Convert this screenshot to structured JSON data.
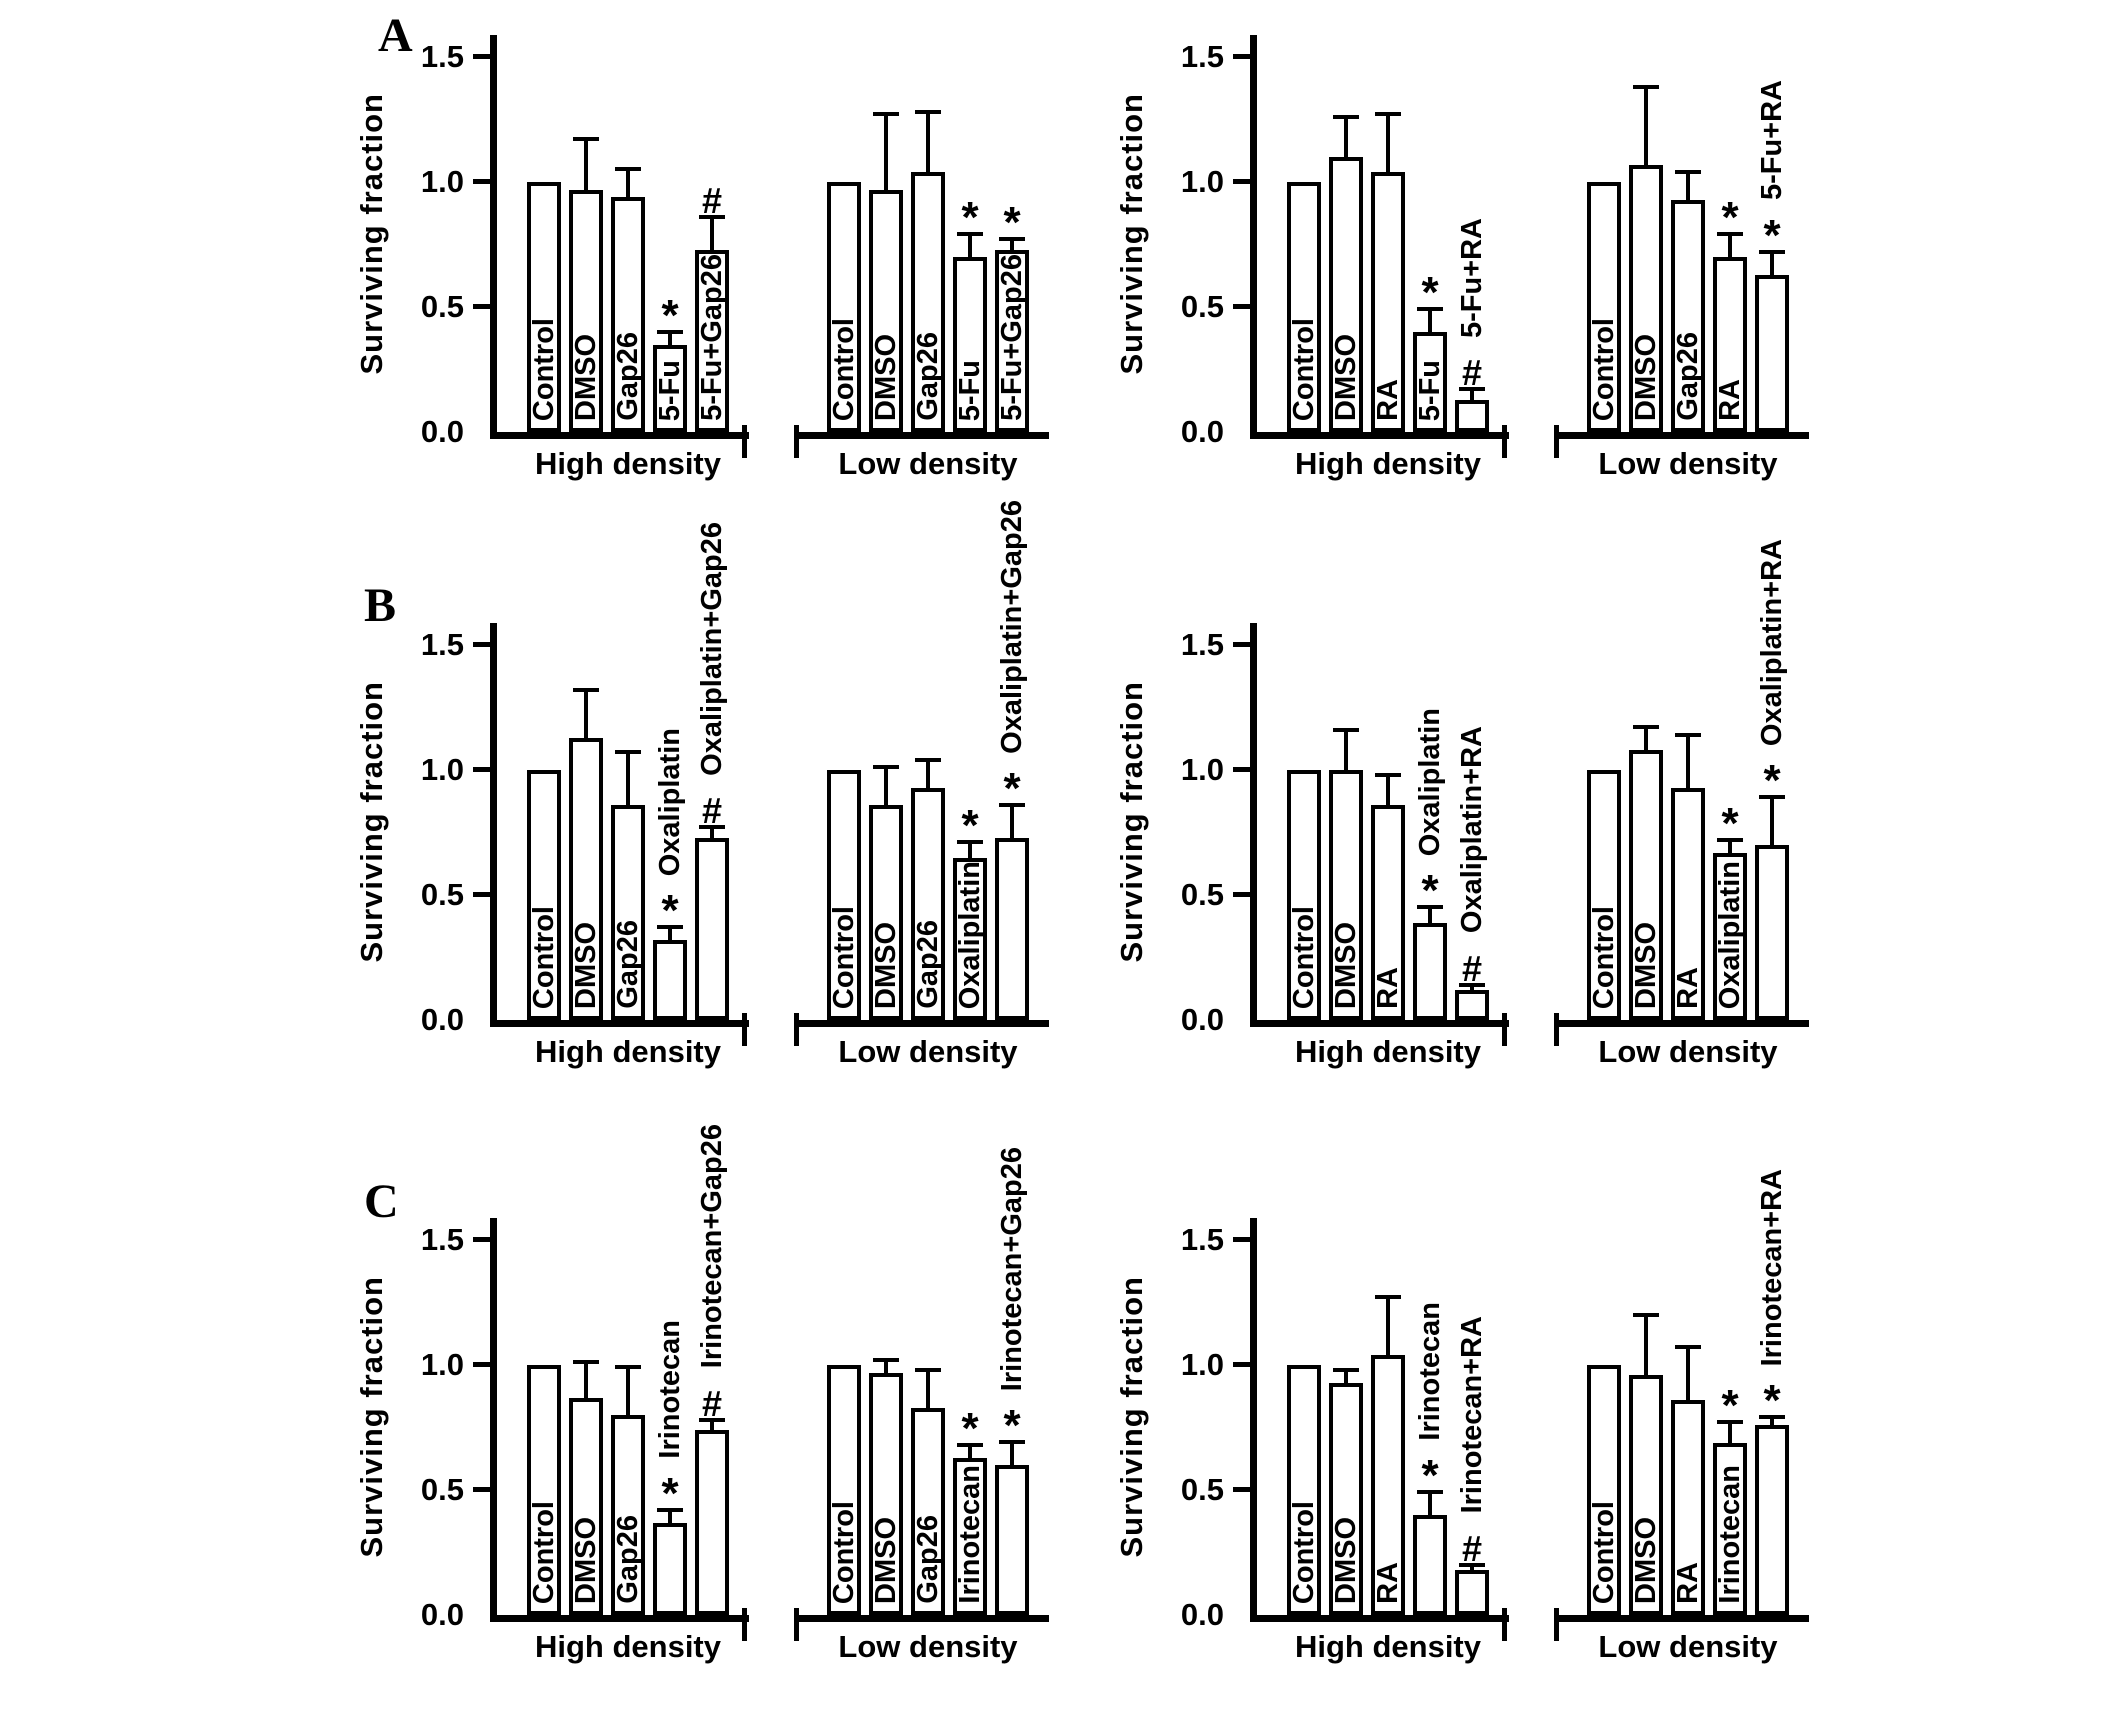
{
  "figure": {
    "panel_letters": [
      "A",
      "B",
      "C"
    ],
    "background": "#ffffff",
    "ink_color": "#000000"
  },
  "chart_data": [
    {
      "type": "bar",
      "panel": "A",
      "position": "left",
      "title": "",
      "xlabel": "",
      "ylabel": "Surviving fraction",
      "ylim": [
        0,
        1.5
      ],
      "yticks": [
        "0.0",
        "0.5",
        "1.0",
        "1.5"
      ],
      "grid": false,
      "legend": "none",
      "groups": [
        {
          "label": "High density",
          "bars": [
            {
              "label": "Control",
              "value": 1.0,
              "err": 0,
              "marker": "",
              "label_pos": "in"
            },
            {
              "label": "DMSO",
              "value": 0.97,
              "err": 0.21,
              "marker": "",
              "label_pos": "in"
            },
            {
              "label": "Gap26",
              "value": 0.94,
              "err": 0.12,
              "marker": "",
              "label_pos": "in"
            },
            {
              "label": "5-Fu",
              "value": 0.35,
              "err": 0.06,
              "marker": "*",
              "label_pos": "in"
            },
            {
              "label": "5-Fu+Gap26",
              "value": 0.73,
              "err": 0.14,
              "marker": "#",
              "label_pos": "in"
            }
          ]
        },
        {
          "label": "Low density",
          "bars": [
            {
              "label": "Control",
              "value": 1.0,
              "err": 0,
              "marker": "",
              "label_pos": "in"
            },
            {
              "label": "DMSO",
              "value": 0.97,
              "err": 0.31,
              "marker": "",
              "label_pos": "in"
            },
            {
              "label": "Gap26",
              "value": 1.04,
              "err": 0.25,
              "marker": "",
              "label_pos": "in"
            },
            {
              "label": "5-Fu",
              "value": 0.7,
              "err": 0.1,
              "marker": "*",
              "label_pos": "in"
            },
            {
              "label": "5-Fu+Gap26",
              "value": 0.73,
              "err": 0.05,
              "marker": "*",
              "label_pos": "in"
            }
          ]
        }
      ]
    },
    {
      "type": "bar",
      "panel": "A",
      "position": "right",
      "title": "",
      "xlabel": "",
      "ylabel": "Surviving fraction",
      "ylim": [
        0,
        1.5
      ],
      "yticks": [
        "0.0",
        "0.5",
        "1.0",
        "1.5"
      ],
      "grid": false,
      "legend": "none",
      "groups": [
        {
          "label": "High density",
          "bars": [
            {
              "label": "Control",
              "value": 1.0,
              "err": 0,
              "marker": "",
              "label_pos": "in"
            },
            {
              "label": "DMSO",
              "value": 1.1,
              "err": 0.17,
              "marker": "",
              "label_pos": "in"
            },
            {
              "label": "RA",
              "value": 1.04,
              "err": 0.24,
              "marker": "",
              "label_pos": "in"
            },
            {
              "label": "5-Fu",
              "value": 0.4,
              "err": 0.1,
              "marker": "*",
              "label_pos": "in"
            },
            {
              "label": "5-Fu+RA",
              "value": 0.13,
              "err": 0.05,
              "marker": "#",
              "label_pos": "out"
            }
          ]
        },
        {
          "label": "Low density",
          "bars": [
            {
              "label": "Control",
              "value": 1.0,
              "err": 0,
              "marker": "",
              "label_pos": "in"
            },
            {
              "label": "DMSO",
              "value": 1.07,
              "err": 0.32,
              "marker": "",
              "label_pos": "in"
            },
            {
              "label": "Gap26",
              "value": 0.93,
              "err": 0.12,
              "marker": "",
              "label_pos": "in"
            },
            {
              "label": "RA",
              "value": 0.7,
              "err": 0.1,
              "marker": "*",
              "label_pos": "in"
            },
            {
              "label": "5-Fu+RA",
              "value": 0.63,
              "err": 0.1,
              "marker": "*",
              "label_pos": "out"
            }
          ]
        }
      ]
    },
    {
      "type": "bar",
      "panel": "B",
      "position": "left",
      "title": "",
      "xlabel": "",
      "ylabel": "Surviving fraction",
      "ylim": [
        0,
        1.5
      ],
      "yticks": [
        "0.0",
        "0.5",
        "1.0",
        "1.5"
      ],
      "grid": false,
      "legend": "none",
      "groups": [
        {
          "label": "High density",
          "bars": [
            {
              "label": "Control",
              "value": 1.0,
              "err": 0,
              "marker": "",
              "label_pos": "in"
            },
            {
              "label": "DMSO",
              "value": 1.13,
              "err": 0.2,
              "marker": "",
              "label_pos": "in"
            },
            {
              "label": "Gap26",
              "value": 0.86,
              "err": 0.22,
              "marker": "",
              "label_pos": "in"
            },
            {
              "label": "Oxaliplatin",
              "value": 0.32,
              "err": 0.06,
              "marker": "*",
              "label_pos": "out"
            },
            {
              "label": "Oxaliplatin+Gap26",
              "value": 0.73,
              "err": 0.05,
              "marker": "#",
              "label_pos": "out"
            }
          ]
        },
        {
          "label": "Low density",
          "bars": [
            {
              "label": "Control",
              "value": 1.0,
              "err": 0,
              "marker": "",
              "label_pos": "in"
            },
            {
              "label": "DMSO",
              "value": 0.86,
              "err": 0.16,
              "marker": "",
              "label_pos": "in"
            },
            {
              "label": "Gap26",
              "value": 0.93,
              "err": 0.12,
              "marker": "",
              "label_pos": "in"
            },
            {
              "label": "Oxaliplatin",
              "value": 0.65,
              "err": 0.07,
              "marker": "*",
              "label_pos": "in"
            },
            {
              "label": "Oxaliplatin+Gap26",
              "value": 0.73,
              "err": 0.14,
              "marker": "*",
              "label_pos": "out"
            }
          ]
        }
      ]
    },
    {
      "type": "bar",
      "panel": "B",
      "position": "right",
      "title": "",
      "xlabel": "",
      "ylabel": "Surviving fraction",
      "ylim": [
        0,
        1.5
      ],
      "yticks": [
        "0.0",
        "0.5",
        "1.0",
        "1.5"
      ],
      "grid": false,
      "legend": "none",
      "groups": [
        {
          "label": "High density",
          "bars": [
            {
              "label": "Control",
              "value": 1.0,
              "err": 0,
              "marker": "",
              "label_pos": "in"
            },
            {
              "label": "DMSO",
              "value": 1.0,
              "err": 0.17,
              "marker": "",
              "label_pos": "in"
            },
            {
              "label": "RA",
              "value": 0.86,
              "err": 0.13,
              "marker": "",
              "label_pos": "in"
            },
            {
              "label": "Oxaliplatin",
              "value": 0.39,
              "err": 0.07,
              "marker": "*",
              "label_pos": "out"
            },
            {
              "label": "Oxaliplatin+RA",
              "value": 0.12,
              "err": 0.03,
              "marker": "#",
              "label_pos": "out"
            }
          ]
        },
        {
          "label": "Low density",
          "bars": [
            {
              "label": "Control",
              "value": 1.0,
              "err": 0,
              "marker": "",
              "label_pos": "in"
            },
            {
              "label": "DMSO",
              "value": 1.08,
              "err": 0.1,
              "marker": "",
              "label_pos": "in"
            },
            {
              "label": "RA",
              "value": 0.93,
              "err": 0.22,
              "marker": "",
              "label_pos": "in"
            },
            {
              "label": "Oxaliplatin",
              "value": 0.67,
              "err": 0.06,
              "marker": "*",
              "label_pos": "in"
            },
            {
              "label": "Oxaliplatin+RA",
              "value": 0.7,
              "err": 0.2,
              "marker": "*",
              "label_pos": "out"
            }
          ]
        }
      ]
    },
    {
      "type": "bar",
      "panel": "C",
      "position": "left",
      "title": "",
      "xlabel": "",
      "ylabel": "Surviving fraction",
      "ylim": [
        0,
        1.5
      ],
      "yticks": [
        "0.0",
        "0.5",
        "1.0",
        "1.5"
      ],
      "grid": false,
      "legend": "none",
      "groups": [
        {
          "label": "High density",
          "bars": [
            {
              "label": "Control",
              "value": 1.0,
              "err": 0,
              "marker": "",
              "label_pos": "in"
            },
            {
              "label": "DMSO",
              "value": 0.87,
              "err": 0.15,
              "marker": "",
              "label_pos": "in"
            },
            {
              "label": "Gap26",
              "value": 0.8,
              "err": 0.2,
              "marker": "",
              "label_pos": "in"
            },
            {
              "label": "Irinotecan",
              "value": 0.37,
              "err": 0.06,
              "marker": "*",
              "label_pos": "out"
            },
            {
              "label": "Irinotecan+Gap26",
              "value": 0.74,
              "err": 0.05,
              "marker": "#",
              "label_pos": "out"
            }
          ]
        },
        {
          "label": "Low density",
          "bars": [
            {
              "label": "Control",
              "value": 1.0,
              "err": 0,
              "marker": "",
              "label_pos": "in"
            },
            {
              "label": "DMSO",
              "value": 0.97,
              "err": 0.06,
              "marker": "",
              "label_pos": "in"
            },
            {
              "label": "Gap26",
              "value": 0.83,
              "err": 0.16,
              "marker": "",
              "label_pos": "in"
            },
            {
              "label": "Irinotecan",
              "value": 0.63,
              "err": 0.06,
              "marker": "*",
              "label_pos": "in"
            },
            {
              "label": "Irinotecan+Gap26",
              "value": 0.6,
              "err": 0.1,
              "marker": "*",
              "label_pos": "out"
            }
          ]
        }
      ]
    },
    {
      "type": "bar",
      "panel": "C",
      "position": "right",
      "title": "",
      "xlabel": "",
      "ylabel": "Surviving fraction",
      "ylim": [
        0,
        1.5
      ],
      "yticks": [
        "0.0",
        "0.5",
        "1.0",
        "1.5"
      ],
      "grid": false,
      "legend": "none",
      "groups": [
        {
          "label": "High density",
          "bars": [
            {
              "label": "Control",
              "value": 1.0,
              "err": 0,
              "marker": "",
              "label_pos": "in"
            },
            {
              "label": "DMSO",
              "value": 0.93,
              "err": 0.06,
              "marker": "",
              "label_pos": "in"
            },
            {
              "label": "RA",
              "value": 1.04,
              "err": 0.24,
              "marker": "",
              "label_pos": "in"
            },
            {
              "label": "Irinotecan",
              "value": 0.4,
              "err": 0.1,
              "marker": "*",
              "label_pos": "out"
            },
            {
              "label": "Irinotecan+RA",
              "value": 0.18,
              "err": 0.03,
              "marker": "#",
              "label_pos": "out"
            }
          ]
        },
        {
          "label": "Low density",
          "bars": [
            {
              "label": "Control",
              "value": 1.0,
              "err": 0,
              "marker": "",
              "label_pos": "in"
            },
            {
              "label": "DMSO",
              "value": 0.96,
              "err": 0.25,
              "marker": "",
              "label_pos": "in"
            },
            {
              "label": "RA",
              "value": 0.86,
              "err": 0.22,
              "marker": "",
              "label_pos": "in"
            },
            {
              "label": "Irinotecan",
              "value": 0.69,
              "err": 0.09,
              "marker": "*",
              "label_pos": "in"
            },
            {
              "label": "Irinotecan+RA",
              "value": 0.76,
              "err": 0.04,
              "marker": "*",
              "label_pos": "out"
            }
          ]
        }
      ]
    }
  ]
}
